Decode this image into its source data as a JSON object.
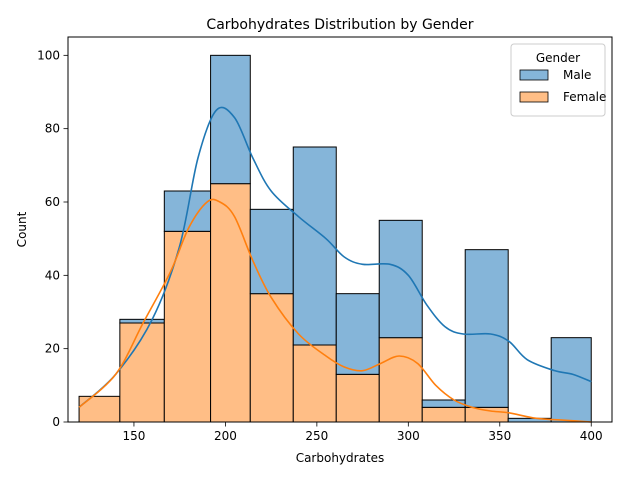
{
  "chart_data": {
    "type": "bar",
    "stacked": true,
    "title": "Carbohydrates Distribution by Gender",
    "xlabel": "Carbohydrates",
    "ylabel": "Count",
    "xlim": [
      113.95,
      411.35
    ],
    "ylim": [
      0,
      105
    ],
    "xticks": [
      150,
      200,
      250,
      300,
      350,
      400
    ],
    "yticks": [
      0,
      20,
      40,
      60,
      80,
      100
    ],
    "grid": false,
    "legend": {
      "title": "Gender",
      "placement": "top-right"
    },
    "bin_edges": [
      120,
      142.3,
      166.6,
      191.9,
      213.6,
      237.1,
      260.6,
      284.1,
      307.6,
      331.1,
      354.6,
      378.1,
      400
    ],
    "series": [
      {
        "name": "Male",
        "color": "#1f77b4",
        "fill": "#85b5d9",
        "counts": [
          0,
          1,
          11,
          35,
          23,
          54,
          22,
          32,
          2,
          43,
          1,
          23
        ],
        "kde": [
          [
            120,
            4
          ],
          [
            140,
            13
          ],
          [
            160,
            28
          ],
          [
            175,
            48
          ],
          [
            185,
            72
          ],
          [
            195,
            85
          ],
          [
            205,
            83
          ],
          [
            215,
            72
          ],
          [
            225,
            63
          ],
          [
            240,
            56
          ],
          [
            255,
            50
          ],
          [
            265,
            45
          ],
          [
            275,
            43
          ],
          [
            290,
            43
          ],
          [
            300,
            40
          ],
          [
            310,
            32
          ],
          [
            320,
            26
          ],
          [
            330,
            24
          ],
          [
            345,
            24
          ],
          [
            355,
            22
          ],
          [
            365,
            17
          ],
          [
            380,
            14
          ],
          [
            390,
            13
          ],
          [
            400,
            11
          ]
        ]
      },
      {
        "name": "Female",
        "color": "#ff7f0e",
        "fill": "#ffbe86",
        "counts": [
          7,
          27,
          52,
          65,
          35,
          21,
          13,
          23,
          4,
          4,
          0,
          0
        ],
        "kde": [
          [
            120,
            4
          ],
          [
            140,
            13
          ],
          [
            155,
            27
          ],
          [
            170,
            41
          ],
          [
            180,
            53
          ],
          [
            190,
            60
          ],
          [
            197,
            60
          ],
          [
            205,
            56
          ],
          [
            215,
            44
          ],
          [
            225,
            34
          ],
          [
            240,
            24
          ],
          [
            255,
            18
          ],
          [
            265,
            15
          ],
          [
            275,
            14
          ],
          [
            285,
            16
          ],
          [
            295,
            18
          ],
          [
            305,
            16
          ],
          [
            315,
            10
          ],
          [
            325,
            6
          ],
          [
            335,
            4
          ],
          [
            345,
            3
          ],
          [
            355,
            2.5
          ],
          [
            370,
            1
          ],
          [
            385,
            0.5
          ],
          [
            400,
            0
          ]
        ]
      }
    ]
  }
}
